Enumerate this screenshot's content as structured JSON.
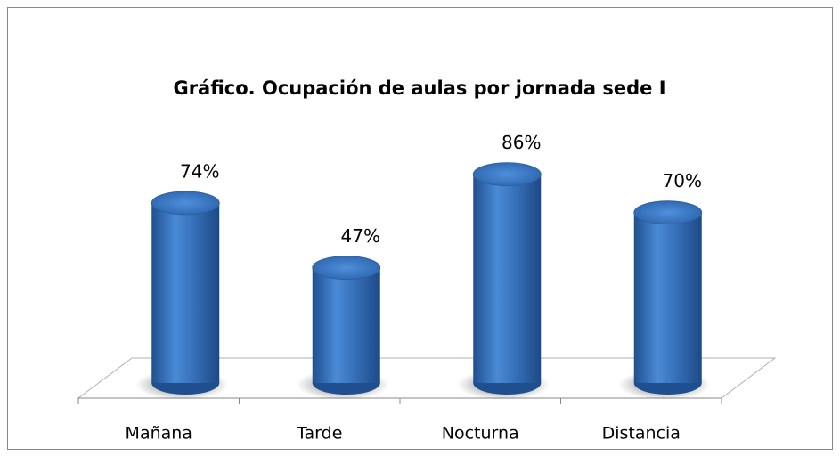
{
  "chart_data": {
    "type": "bar",
    "title": "Gráfico. Ocupación de aulas por jornada sede I",
    "categories": [
      "Mañana",
      "Tarde",
      "Nocturna",
      "Distancia"
    ],
    "values": [
      74,
      47,
      86,
      70
    ],
    "value_labels": [
      "74%",
      "47%",
      "86%",
      "70%"
    ],
    "color": "#3a75c4",
    "ylim": [
      0,
      100
    ]
  }
}
